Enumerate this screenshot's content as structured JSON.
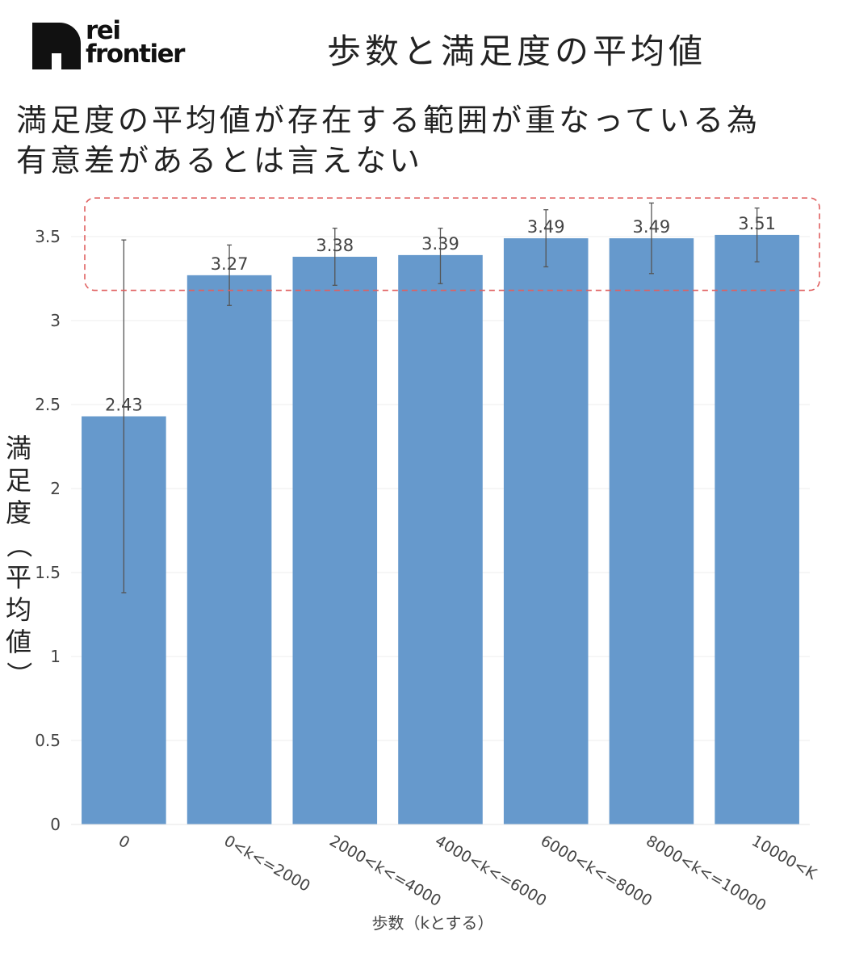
{
  "logo": {
    "line1": "rei",
    "line2": "frontier"
  },
  "page_title": "歩数と満足度の平均値",
  "subtitle_lines": [
    "満足度の平均値が存在する範囲が重なっている為",
    "有意差があるとは言えない"
  ],
  "colors": {
    "bar": "#6699cc",
    "error_bar": "#555555",
    "highlight_box": "#e06060",
    "text": "#222222",
    "axis_text": "#444444",
    "grid": "#eeeeee"
  },
  "chart_data": {
    "type": "bar",
    "categories": [
      "0",
      "0<k<=2000",
      "2000<k<=4000",
      "4000<k<=6000",
      "6000<k<=8000",
      "8000<k<=10000",
      "10000<K"
    ],
    "values": [
      2.43,
      3.27,
      3.38,
      3.39,
      3.49,
      3.49,
      3.51
    ],
    "value_labels": [
      "2.43",
      "3.27",
      "3.38",
      "3.39",
      "3.49",
      "3.49",
      "3.51"
    ],
    "error_low": [
      1.38,
      3.09,
      3.21,
      3.22,
      3.32,
      3.28,
      3.35
    ],
    "error_high": [
      3.48,
      3.45,
      3.55,
      3.55,
      3.66,
      3.7,
      3.67
    ],
    "xlabel": "歩数（kとする）",
    "ylabel": "満足度（平均値）",
    "ylim": [
      0,
      3.7
    ],
    "yticks": [
      0,
      0.5,
      1,
      1.5,
      2,
      2.5,
      3,
      3.5
    ],
    "ytick_labels": [
      "0",
      "0.5",
      "1",
      "1.5",
      "2",
      "2.5",
      "3",
      "3.5"
    ],
    "highlight_range": [
      3.18,
      3.73
    ],
    "grid": true
  }
}
